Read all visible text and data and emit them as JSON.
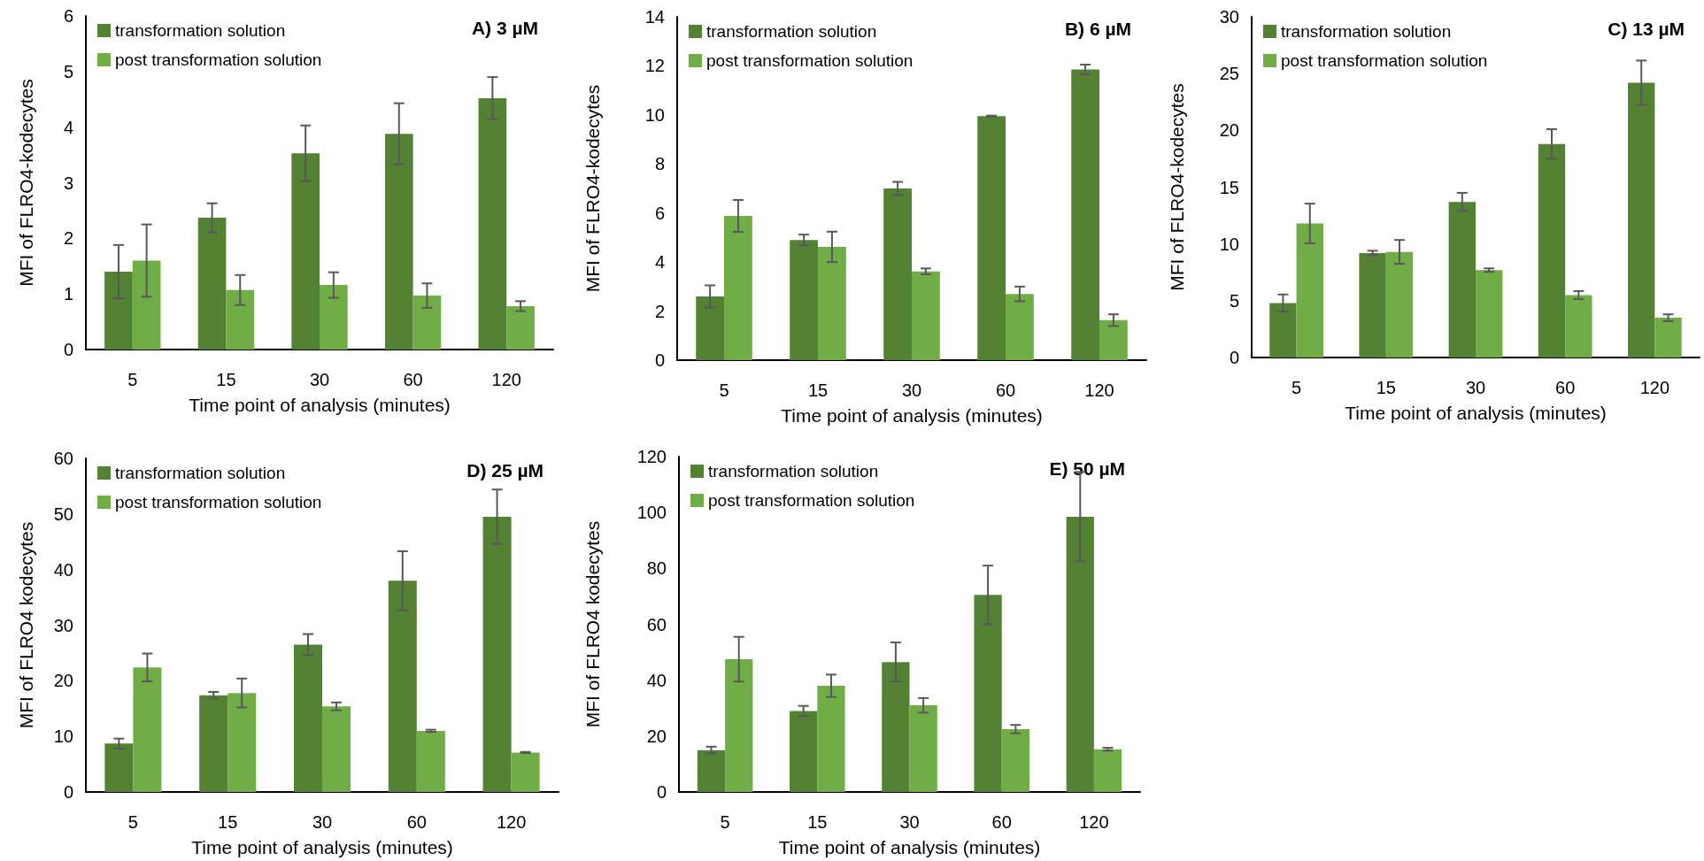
{
  "chart_data": [
    {
      "type": "bar",
      "title": "A) 3 µM",
      "xlabel": "Time point of analysis (minutes)",
      "ylabel": "MFI of FLRO4-kodecytes",
      "categories": [
        "5",
        "15",
        "30",
        "60",
        "120"
      ],
      "ylim": [
        0,
        6
      ],
      "yticks": [
        0,
        1,
        2,
        3,
        4,
        5,
        6
      ],
      "grid": false,
      "legend": "top left",
      "series": [
        {
          "name": "transformation solution",
          "color": "#548235",
          "values": [
            1.4,
            2.37,
            3.53,
            3.88,
            4.52
          ],
          "errors": [
            0.48,
            0.26,
            0.5,
            0.55,
            0.38
          ]
        },
        {
          "name": "post transformation solution",
          "color": "#70ad47",
          "values": [
            1.6,
            1.07,
            1.16,
            0.97,
            0.78
          ],
          "errors": [
            0.65,
            0.27,
            0.23,
            0.22,
            0.09
          ]
        }
      ]
    },
    {
      "type": "bar",
      "title": "B) 6 µM",
      "xlabel": "Time point of analysis (minutes)",
      "ylabel": "MFI of FLRO4-kodecytes",
      "categories": [
        "5",
        "15",
        "30",
        "60",
        "120"
      ],
      "ylim": [
        0,
        14
      ],
      "yticks": [
        0,
        2,
        4,
        6,
        8,
        10,
        12,
        14
      ],
      "grid": false,
      "legend": "top left",
      "series": [
        {
          "name": "transformation solution",
          "color": "#548235",
          "values": [
            2.6,
            4.9,
            7.0,
            9.95,
            11.85
          ],
          "errors": [
            0.45,
            0.22,
            0.27,
            0.02,
            0.2
          ]
        },
        {
          "name": "post transformation solution",
          "color": "#70ad47",
          "values": [
            5.88,
            4.62,
            3.62,
            2.7,
            1.63
          ],
          "errors": [
            0.65,
            0.62,
            0.12,
            0.3,
            0.24
          ]
        }
      ]
    },
    {
      "type": "bar",
      "title": "C) 13 µM",
      "xlabel": "Time point of analysis (minutes)",
      "ylabel": "MFI of FLRO4-kodecytes",
      "categories": [
        "5",
        "15",
        "30",
        "60",
        "120"
      ],
      "ylim": [
        0,
        30
      ],
      "yticks": [
        0,
        5,
        10,
        15,
        20,
        25,
        30
      ],
      "grid": false,
      "legend": "top left",
      "series": [
        {
          "name": "transformation solution",
          "color": "#548235",
          "values": [
            4.8,
            9.2,
            13.7,
            18.8,
            24.2
          ],
          "errors": [
            0.75,
            0.2,
            0.8,
            1.3,
            1.95
          ]
        },
        {
          "name": "post transformation solution",
          "color": "#70ad47",
          "values": [
            11.8,
            9.3,
            7.7,
            5.5,
            3.5
          ],
          "errors": [
            1.75,
            1.05,
            0.15,
            0.35,
            0.3
          ]
        }
      ]
    },
    {
      "type": "bar",
      "title": "D) 25 µM",
      "xlabel": "Time point of analysis (minutes)",
      "ylabel": "MFI of FLRO4 kodecytes",
      "categories": [
        "5",
        "15",
        "30",
        "60",
        "120"
      ],
      "ylim": [
        0,
        60
      ],
      "yticks": [
        0,
        10,
        20,
        30,
        40,
        50,
        60
      ],
      "grid": false,
      "legend": "top left",
      "series": [
        {
          "name": "transformation solution",
          "color": "#548235",
          "values": [
            8.7,
            17.4,
            26.5,
            38,
            49.5
          ],
          "errors": [
            0.9,
            0.6,
            1.9,
            5.3,
            4.9
          ]
        },
        {
          "name": "post transformation solution",
          "color": "#70ad47",
          "values": [
            22.4,
            17.8,
            15.4,
            11,
            7.1
          ],
          "errors": [
            2.5,
            2.6,
            0.7,
            0.2,
            0.1
          ]
        }
      ]
    },
    {
      "type": "bar",
      "title": "E) 50 µM",
      "xlabel": "Time point of analysis (minutes)",
      "ylabel": "MFI of FLRO4 kodecytes",
      "categories": [
        "5",
        "15",
        "30",
        "60",
        "120"
      ],
      "ylim": [
        0,
        120
      ],
      "yticks": [
        0,
        20,
        40,
        60,
        80,
        100,
        120
      ],
      "grid": false,
      "legend": "top left",
      "series": [
        {
          "name": "transformation solution",
          "color": "#548235",
          "values": [
            15,
            29,
            46.5,
            70.5,
            98.5
          ],
          "errors": [
            1.2,
            1.8,
            7,
            10.5,
            16
          ]
        },
        {
          "name": "post transformation solution",
          "color": "#70ad47",
          "values": [
            47.5,
            38,
            31,
            22.5,
            15.3
          ],
          "errors": [
            8,
            4,
            2.6,
            1.5,
            0.5
          ]
        }
      ]
    }
  ]
}
